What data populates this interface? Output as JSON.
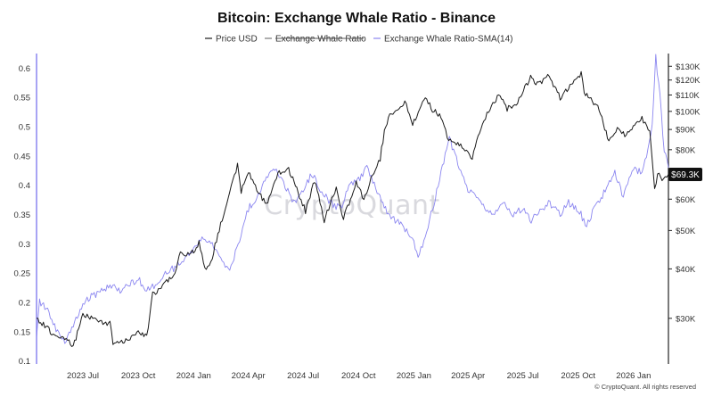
{
  "chart_data": {
    "type": "line",
    "title": "Bitcoin: Exchange Whale Ratio - Binance",
    "legend": [
      {
        "name": "Price USD",
        "color": "#1a1a1a",
        "struck": false
      },
      {
        "name": "Exchange Whale Ratio",
        "color": "#777777",
        "struck": true
      },
      {
        "name": "Exchange Whale Ratio-SMA(14)",
        "color": "#8b86f0",
        "struck": false
      }
    ],
    "legend_position": "top-center",
    "x_ticks": [
      "2023 Jul",
      "2023 Oct",
      "2024 Jan",
      "2024 Apr",
      "2024 Jul",
      "2024 Oct",
      "2025 Jan",
      "2025 Apr",
      "2025 Jul",
      "2025 Oct",
      "2026 Jan"
    ],
    "x_range": [
      "2023-04-15",
      "2026-02-28"
    ],
    "y_left": {
      "ticks": [
        "0.6",
        "0.55",
        "0.5",
        "0.45",
        "0.4",
        "0.35",
        "0.3",
        "0.25",
        "0.2",
        "0.15",
        "0.1"
      ],
      "range": [
        0.095,
        0.625
      ]
    },
    "y_right": {
      "ticks": [
        "$130K",
        "$120K",
        "$110K",
        "$100K",
        "$90K",
        "$80K",
        "$70K",
        "$60K",
        "$50K",
        "$40K",
        "$30K"
      ],
      "scale": "log",
      "range": [
        23000,
        140000
      ]
    },
    "current_price_label": "$69.3K",
    "grid": false,
    "series": [
      {
        "name": "Price USD",
        "axis": "right",
        "color": "#1a1a1a",
        "points": [
          [
            "2023-04-15",
            30000
          ],
          [
            "2023-05-01",
            28500
          ],
          [
            "2023-05-15",
            27200
          ],
          [
            "2023-06-01",
            26800
          ],
          [
            "2023-06-15",
            25500
          ],
          [
            "2023-07-01",
            30500
          ],
          [
            "2023-07-15",
            30200
          ],
          [
            "2023-08-01",
            29300
          ],
          [
            "2023-08-15",
            29200
          ],
          [
            "2023-08-20",
            26100
          ],
          [
            "2023-09-01",
            25900
          ],
          [
            "2023-09-15",
            26600
          ],
          [
            "2023-10-01",
            27900
          ],
          [
            "2023-10-15",
            27000
          ],
          [
            "2023-10-25",
            34500
          ],
          [
            "2023-11-01",
            35000
          ],
          [
            "2023-11-15",
            37000
          ],
          [
            "2023-12-01",
            38700
          ],
          [
            "2023-12-10",
            44000
          ],
          [
            "2023-12-20",
            43500
          ],
          [
            "2024-01-01",
            44200
          ],
          [
            "2024-01-10",
            46500
          ],
          [
            "2024-01-22",
            39500
          ],
          [
            "2024-02-01",
            43000
          ],
          [
            "2024-02-15",
            52000
          ],
          [
            "2024-03-01",
            62000
          ],
          [
            "2024-03-14",
            73000
          ],
          [
            "2024-03-20",
            63000
          ],
          [
            "2024-04-01",
            70000
          ],
          [
            "2024-04-15",
            63500
          ],
          [
            "2024-05-01",
            58000
          ],
          [
            "2024-05-20",
            69500
          ],
          [
            "2024-06-07",
            71500
          ],
          [
            "2024-06-25",
            61000
          ],
          [
            "2024-07-05",
            56000
          ],
          [
            "2024-07-20",
            67000
          ],
          [
            "2024-08-05",
            53000
          ],
          [
            "2024-08-25",
            64000
          ],
          [
            "2024-09-06",
            53500
          ],
          [
            "2024-09-27",
            66000
          ],
          [
            "2024-10-10",
            60000
          ],
          [
            "2024-10-29",
            72000
          ],
          [
            "2024-11-06",
            76000
          ],
          [
            "2024-11-13",
            89000
          ],
          [
            "2024-11-22",
            99000
          ],
          [
            "2024-12-05",
            100000
          ],
          [
            "2024-12-17",
            106000
          ],
          [
            "2024-12-30",
            93000
          ],
          [
            "2025-01-20",
            108000
          ],
          [
            "2025-02-01",
            101000
          ],
          [
            "2025-02-15",
            97000
          ],
          [
            "2025-02-28",
            84000
          ],
          [
            "2025-03-15",
            83000
          ],
          [
            "2025-04-08",
            76500
          ],
          [
            "2025-04-25",
            94000
          ],
          [
            "2025-05-10",
            103000
          ],
          [
            "2025-05-22",
            110000
          ],
          [
            "2025-06-05",
            101500
          ],
          [
            "2025-06-20",
            104000
          ],
          [
            "2025-07-14",
            122000
          ],
          [
            "2025-07-25",
            117000
          ],
          [
            "2025-08-14",
            123000
          ],
          [
            "2025-09-01",
            108000
          ],
          [
            "2025-09-15",
            115000
          ],
          [
            "2025-10-06",
            125000
          ],
          [
            "2025-10-11",
            112000
          ],
          [
            "2025-10-20",
            108000
          ],
          [
            "2025-11-05",
            101000
          ],
          [
            "2025-11-21",
            84000
          ],
          [
            "2025-12-05",
            90000
          ],
          [
            "2025-12-20",
            87000
          ],
          [
            "2026-01-05",
            93000
          ],
          [
            "2026-01-15",
            96000
          ],
          [
            "2026-01-28",
            88000
          ],
          [
            "2026-02-05",
            63000
          ],
          [
            "2026-02-10",
            70000
          ],
          [
            "2026-02-20",
            67000
          ],
          [
            "2026-02-28",
            69300
          ]
        ]
      },
      {
        "name": "Exchange Whale Ratio-SMA(14)",
        "axis": "left",
        "color": "#8b86f0",
        "points": [
          [
            "2023-04-15",
            0.14
          ],
          [
            "2023-04-20",
            0.2
          ],
          [
            "2023-05-01",
            0.19
          ],
          [
            "2023-05-15",
            0.16
          ],
          [
            "2023-06-01",
            0.13
          ],
          [
            "2023-06-15",
            0.16
          ],
          [
            "2023-07-01",
            0.2
          ],
          [
            "2023-07-15",
            0.21
          ],
          [
            "2023-08-01",
            0.22
          ],
          [
            "2023-08-15",
            0.23
          ],
          [
            "2023-09-01",
            0.22
          ],
          [
            "2023-09-15",
            0.23
          ],
          [
            "2023-10-01",
            0.24
          ],
          [
            "2023-10-15",
            0.22
          ],
          [
            "2023-11-01",
            0.23
          ],
          [
            "2023-11-15",
            0.25
          ],
          [
            "2023-12-01",
            0.26
          ],
          [
            "2023-12-15",
            0.27
          ],
          [
            "2024-01-01",
            0.29
          ],
          [
            "2024-01-15",
            0.31
          ],
          [
            "2024-02-01",
            0.3
          ],
          [
            "2024-02-15",
            0.28
          ],
          [
            "2024-03-01",
            0.25
          ],
          [
            "2024-03-15",
            0.3
          ],
          [
            "2024-04-01",
            0.36
          ],
          [
            "2024-04-15",
            0.38
          ],
          [
            "2024-05-01",
            0.41
          ],
          [
            "2024-05-15",
            0.43
          ],
          [
            "2024-06-01",
            0.4
          ],
          [
            "2024-06-15",
            0.37
          ],
          [
            "2024-07-01",
            0.39
          ],
          [
            "2024-07-15",
            0.42
          ],
          [
            "2024-08-01",
            0.39
          ],
          [
            "2024-08-15",
            0.37
          ],
          [
            "2024-09-01",
            0.36
          ],
          [
            "2024-09-15",
            0.4
          ],
          [
            "2024-10-01",
            0.41
          ],
          [
            "2024-10-15",
            0.43
          ],
          [
            "2024-11-01",
            0.39
          ],
          [
            "2024-11-15",
            0.36
          ],
          [
            "2024-12-01",
            0.34
          ],
          [
            "2024-12-15",
            0.33
          ],
          [
            "2025-01-01",
            0.3
          ],
          [
            "2025-01-08",
            0.28
          ],
          [
            "2025-01-20",
            0.31
          ],
          [
            "2025-02-01",
            0.36
          ],
          [
            "2025-02-15",
            0.42
          ],
          [
            "2025-03-01",
            0.48
          ],
          [
            "2025-03-15",
            0.44
          ],
          [
            "2025-04-01",
            0.39
          ],
          [
            "2025-04-15",
            0.38
          ],
          [
            "2025-05-01",
            0.36
          ],
          [
            "2025-05-15",
            0.35
          ],
          [
            "2025-06-01",
            0.37
          ],
          [
            "2025-06-15",
            0.35
          ],
          [
            "2025-07-01",
            0.36
          ],
          [
            "2025-07-15",
            0.34
          ],
          [
            "2025-08-01",
            0.36
          ],
          [
            "2025-08-15",
            0.37
          ],
          [
            "2025-09-01",
            0.35
          ],
          [
            "2025-09-15",
            0.37
          ],
          [
            "2025-10-01",
            0.36
          ],
          [
            "2025-10-15",
            0.33
          ],
          [
            "2025-11-01",
            0.37
          ],
          [
            "2025-11-15",
            0.39
          ],
          [
            "2025-12-01",
            0.42
          ],
          [
            "2025-12-15",
            0.38
          ],
          [
            "2026-01-01",
            0.43
          ],
          [
            "2026-01-15",
            0.42
          ],
          [
            "2026-01-25",
            0.46
          ],
          [
            "2026-02-01",
            0.5
          ],
          [
            "2026-02-07",
            0.62
          ],
          [
            "2026-02-14",
            0.55
          ],
          [
            "2026-02-21",
            0.46
          ],
          [
            "2026-02-28",
            0.43
          ]
        ]
      }
    ]
  },
  "watermark": "CryptoQuant",
  "credit": "© CryptoQuant. All rights reserved"
}
